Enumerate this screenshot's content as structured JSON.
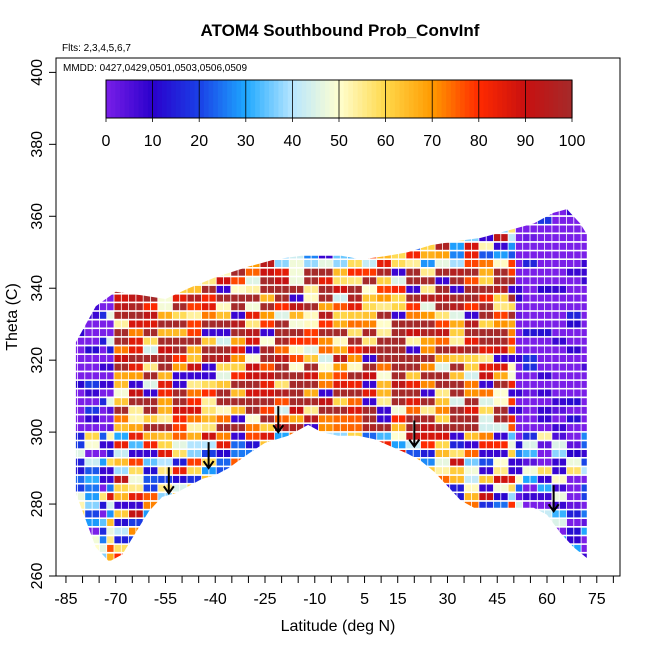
{
  "chart_data": {
    "type": "heatmap",
    "title": "ATOM4 Southbound Prob_ConvInf",
    "flights_note": "Flts: 2,3,4,5,6,7",
    "dates_note": "MMDD: 0427,0429,0501,0503,0506,0509",
    "xlabel": "Latitude (deg N)",
    "ylabel": "Theta (C)",
    "xlim": [
      -88,
      82
    ],
    "ylim": [
      260,
      404
    ],
    "x_ticks": [
      "-85",
      "-70",
      "-55",
      "-40",
      "-25",
      "-10",
      "5",
      "15",
      "30",
      "45",
      "60",
      "75"
    ],
    "x_tick_values": [
      -85,
      -70,
      -55,
      -40,
      -25,
      -10,
      5,
      15,
      30,
      45,
      60,
      75
    ],
    "x_minor_step": 5,
    "y_ticks": [
      "260",
      "280",
      "300",
      "320",
      "340",
      "360",
      "380",
      "400"
    ],
    "y_tick_values": [
      260,
      280,
      300,
      320,
      340,
      360,
      380,
      400
    ],
    "colorbar": {
      "range": [
        0,
        100
      ],
      "ticks": [
        "0",
        "10",
        "20",
        "30",
        "40",
        "50",
        "60",
        "70",
        "80",
        "90",
        "100"
      ],
      "colors": [
        "#7a1fe8",
        "#2a00cc",
        "#1a40e6",
        "#1ea8ff",
        "#b7e6ff",
        "#ffffd0",
        "#ffd84a",
        "#ff9a00",
        "#ff2a00",
        "#c81010",
        "#a52a2a"
      ]
    },
    "data_coverage": {
      "lower_boundary": [
        [
          -82,
          283
        ],
        [
          -76,
          268
        ],
        [
          -72,
          264
        ],
        [
          -68,
          266
        ],
        [
          -64,
          272
        ],
        [
          -60,
          278
        ],
        [
          -56,
          282
        ],
        [
          -52,
          283
        ],
        [
          -48,
          285
        ],
        [
          -44,
          287
        ],
        [
          -40,
          288
        ],
        [
          -36,
          290
        ],
        [
          -30,
          294
        ],
        [
          -25,
          297
        ],
        [
          -18,
          299
        ],
        [
          -12,
          302
        ],
        [
          -8,
          300
        ],
        [
          -3,
          299
        ],
        [
          3,
          299
        ],
        [
          8,
          298
        ],
        [
          13,
          296
        ],
        [
          18,
          294
        ],
        [
          22,
          292
        ],
        [
          26,
          289
        ],
        [
          30,
          285
        ],
        [
          34,
          281
        ],
        [
          38,
          279
        ],
        [
          44,
          279
        ],
        [
          50,
          279
        ],
        [
          56,
          279
        ],
        [
          60,
          277
        ],
        [
          64,
          272
        ],
        [
          68,
          268
        ],
        [
          72,
          265
        ]
      ],
      "upper_boundary": [
        [
          -82,
          325
        ],
        [
          -76,
          335
        ],
        [
          -70,
          339
        ],
        [
          -62,
          338
        ],
        [
          -55,
          337
        ],
        [
          -48,
          340
        ],
        [
          -40,
          343
        ],
        [
          -30,
          346
        ],
        [
          -22,
          348
        ],
        [
          -14,
          349
        ],
        [
          -8,
          349
        ],
        [
          -2,
          349
        ],
        [
          4,
          348
        ],
        [
          12,
          349
        ],
        [
          18,
          350
        ],
        [
          25,
          352
        ],
        [
          32,
          353
        ],
        [
          40,
          354
        ],
        [
          48,
          356
        ],
        [
          56,
          358
        ],
        [
          62,
          361
        ],
        [
          66,
          362
        ],
        [
          70,
          358
        ],
        [
          72,
          355
        ]
      ]
    },
    "features": {
      "high_prob_core": {
        "lat_range": [
          -72,
          50
        ],
        "theta_range": [
          300,
          345
        ],
        "prob": 95
      },
      "low_prob_edges": {
        "prob": 5
      }
    },
    "arrows_at_latitude": [
      -54,
      -42,
      -21,
      20,
      62
    ],
    "arrow_theta": [
      283,
      290,
      300,
      296,
      278
    ]
  }
}
